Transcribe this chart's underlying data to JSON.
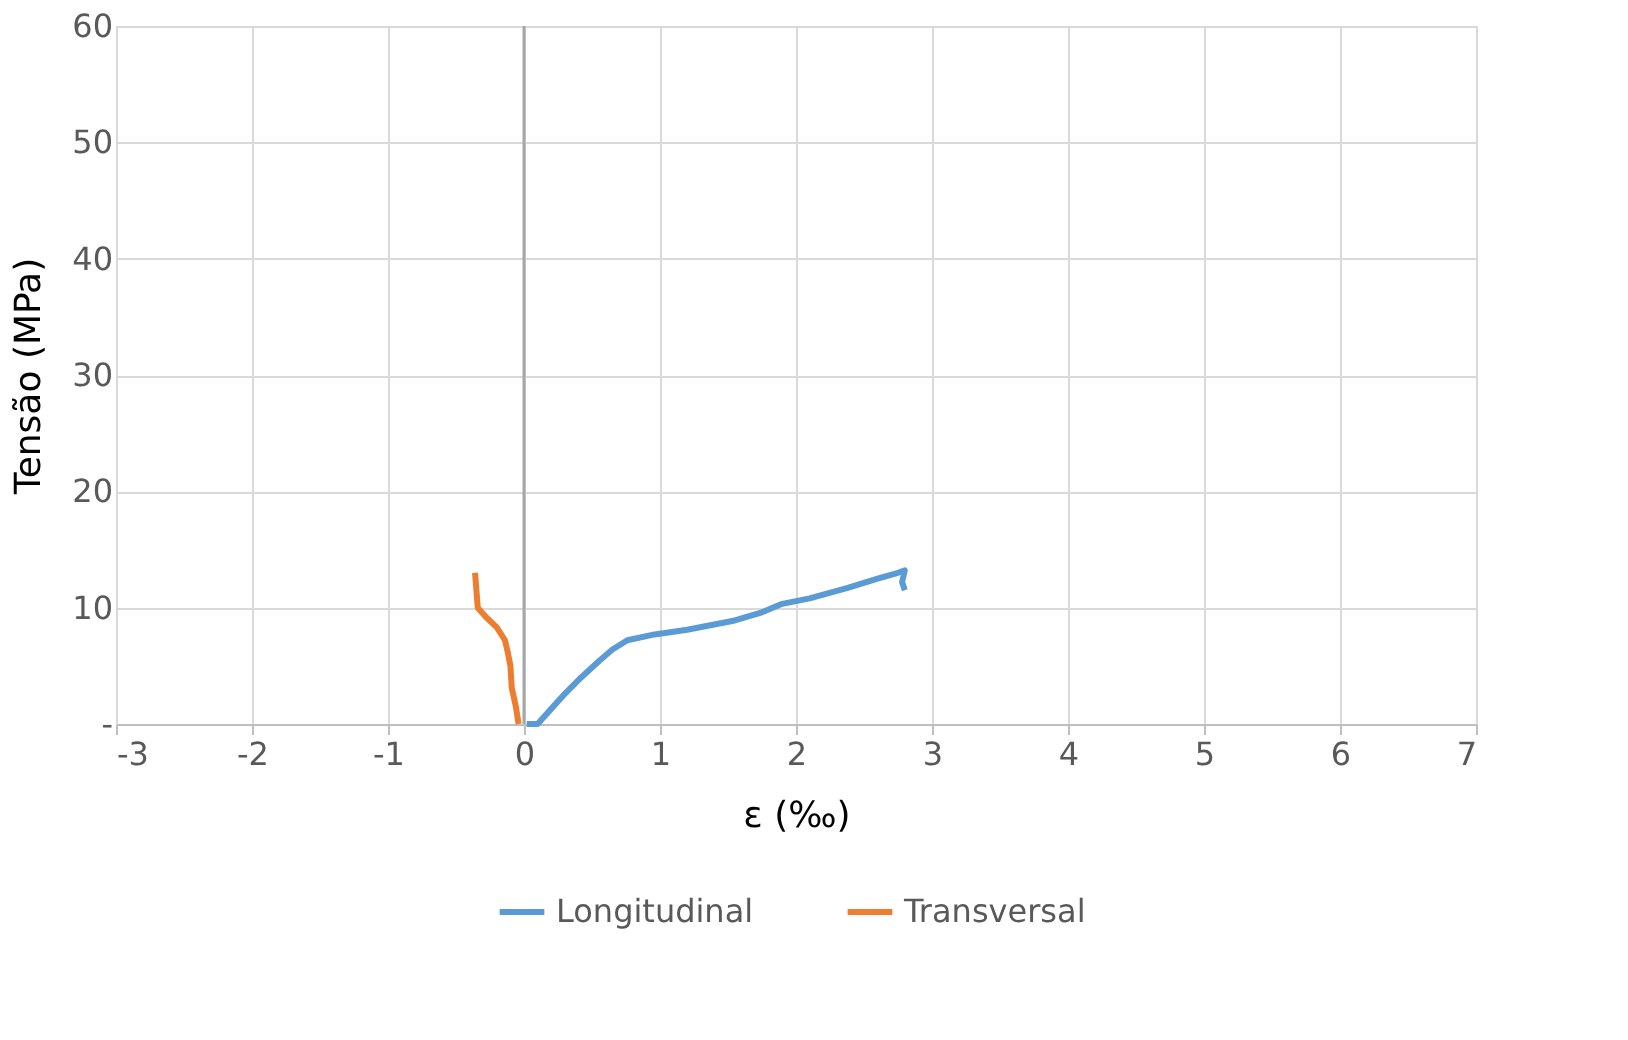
{
  "chart_data": {
    "type": "line",
    "xlabel": "ε (‰)",
    "ylabel": "Tensão (MPa)",
    "xlim": [
      -3,
      7
    ],
    "xticks": [
      -3,
      -2,
      -1,
      0,
      1,
      2,
      3,
      4,
      5,
      6,
      7
    ],
    "ylim": [
      0,
      60
    ],
    "yticks": [
      {
        "value": 0,
        "label": "-"
      },
      10,
      20,
      30,
      40,
      50,
      60
    ],
    "grid": true,
    "legend": "bottom",
    "marker": "none",
    "line_style": "solid",
    "series": [
      {
        "name": "Longitudinal",
        "color": "#5b9bd5",
        "x": [
          0.02,
          0.1,
          0.2,
          0.3,
          0.42,
          0.55,
          0.65,
          0.76,
          0.96,
          1.2,
          1.55,
          1.75,
          1.89,
          2.1,
          2.38,
          2.6,
          2.75,
          2.8,
          2.78,
          2.8
        ],
        "values": [
          0,
          0,
          1.3,
          2.6,
          4.0,
          5.4,
          6.4,
          7.2,
          7.7,
          8.1,
          8.9,
          9.6,
          10.3,
          10.8,
          11.7,
          12.5,
          13.0,
          13.2,
          12.2,
          11.5
        ]
      },
      {
        "name": "Transversal",
        "color": "#ed7d31",
        "x": [
          -0.04,
          -0.06,
          -0.09,
          -0.1,
          -0.12,
          -0.14,
          -0.2,
          -0.28,
          -0.34,
          -0.35,
          -0.36
        ],
        "values": [
          0,
          1.5,
          3.1,
          5.0,
          6.2,
          7.2,
          8.3,
          9.2,
          10.0,
          11.5,
          13.0
        ]
      }
    ]
  }
}
